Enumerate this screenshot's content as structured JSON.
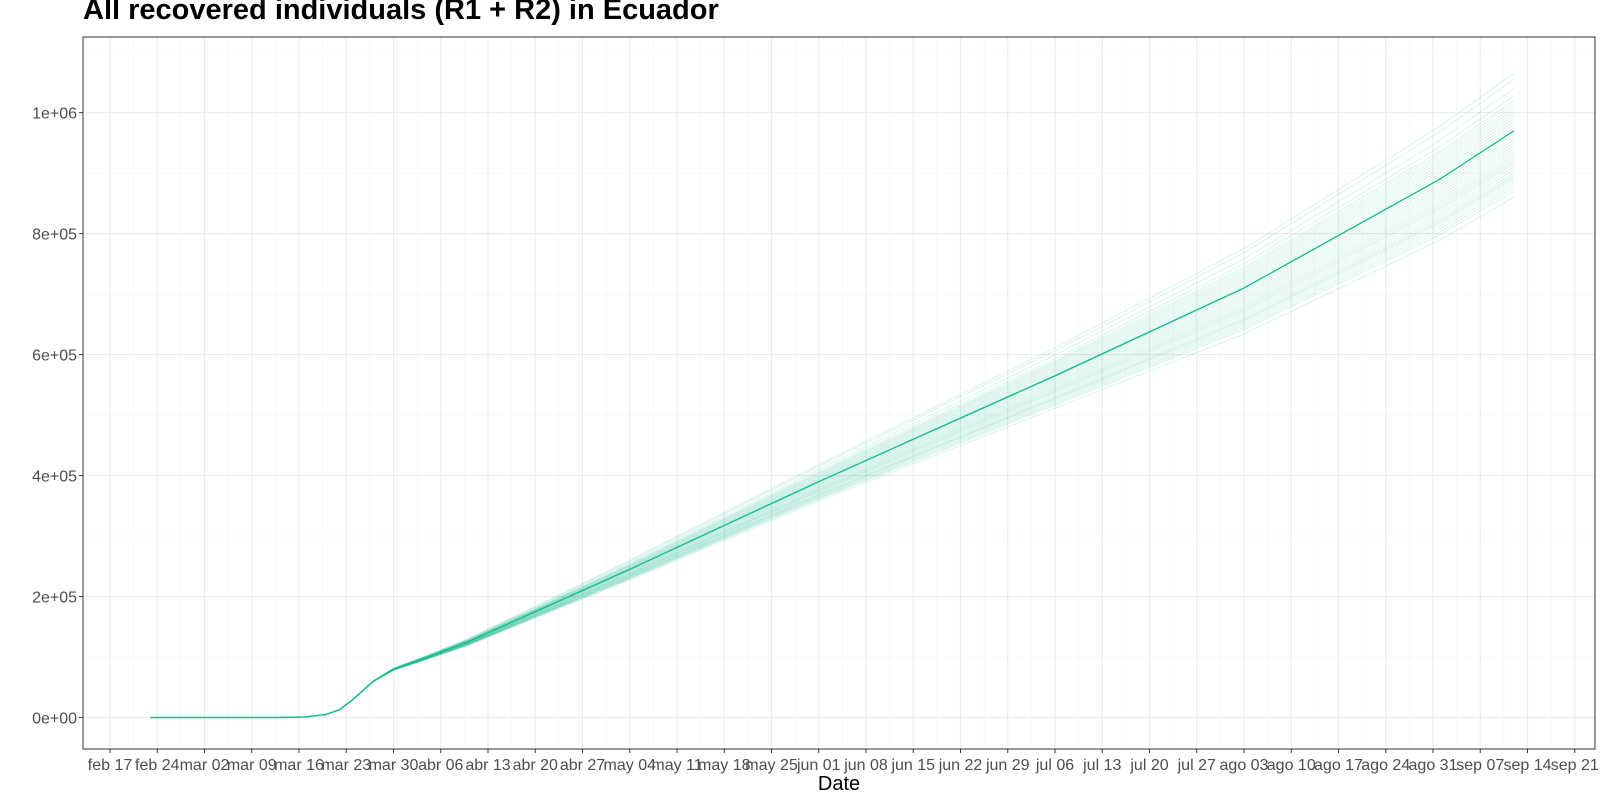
{
  "chart_data": {
    "type": "line",
    "title": "All recovered individuals (R1 + R2) in  Ecuador",
    "xlabel": "Date",
    "ylabel": "",
    "x_axis": {
      "type": "date",
      "range": [
        "2020-02-13",
        "2020-09-24"
      ],
      "tick_dates": [
        "2020-02-17",
        "2020-02-24",
        "2020-03-02",
        "2020-03-09",
        "2020-03-16",
        "2020-03-23",
        "2020-03-30",
        "2020-04-06",
        "2020-04-13",
        "2020-04-20",
        "2020-04-27",
        "2020-05-04",
        "2020-05-11",
        "2020-05-18",
        "2020-05-25",
        "2020-06-01",
        "2020-06-08",
        "2020-06-15",
        "2020-06-22",
        "2020-06-29",
        "2020-07-06",
        "2020-07-13",
        "2020-07-20",
        "2020-07-27",
        "2020-08-03",
        "2020-08-10",
        "2020-08-17",
        "2020-08-24",
        "2020-08-31",
        "2020-09-07",
        "2020-09-14",
        "2020-09-21"
      ],
      "tick_labels": [
        "feb 17",
        "feb 24",
        "mar 02",
        "mar 09",
        "mar 16",
        "mar 23",
        "mar 30",
        "abr 06",
        "abr 13",
        "abr 20",
        "abr 27",
        "may 04",
        "may 11",
        "may 18",
        "may 25",
        "jun 01",
        "jun 08",
        "jun 15",
        "jun 22",
        "jun 29",
        "jul 06",
        "jul 13",
        "jul 20",
        "jul 27",
        "ago 03",
        "ago 10",
        "ago 17",
        "ago 24",
        "ago 31",
        "sep 07",
        "sep 14",
        "sep 21"
      ]
    },
    "y_axis": {
      "range": [
        -52000,
        1125000
      ],
      "ticks": [
        0,
        200000,
        400000,
        600000,
        800000,
        1000000
      ],
      "tick_labels": [
        "0e+00",
        "2e+05",
        "4e+05",
        "6e+05",
        "8e+05",
        "1e+06"
      ]
    },
    "grid": true,
    "legend": "none",
    "line_color": "#1ABC8C",
    "main_series": {
      "x": [
        "2020-02-23",
        "2020-03-13",
        "2020-03-17",
        "2020-03-20",
        "2020-03-22",
        "2020-03-24",
        "2020-03-27",
        "2020-03-30",
        "2020-04-04",
        "2020-04-10",
        "2020-04-20",
        "2020-05-04",
        "2020-06-01",
        "2020-07-06",
        "2020-08-03",
        "2020-09-01",
        "2020-09-12"
      ],
      "y": [
        0,
        0,
        1000,
        5000,
        13000,
        30000,
        60000,
        80000,
        100000,
        125000,
        175000,
        245000,
        390000,
        565000,
        710000,
        890000,
        970000
      ]
    },
    "simulation_final_values": [
      860000,
      870000,
      875000,
      880000,
      885000,
      890000,
      893000,
      896000,
      900000,
      905000,
      910000,
      915000,
      918000,
      922000,
      926000,
      930000,
      935000,
      940000,
      945000,
      950000,
      955000,
      960000,
      965000,
      975000,
      980000,
      985000,
      990000,
      995000,
      1000000,
      1005000,
      1010000,
      1015000,
      1020000,
      1028000,
      1040000,
      1055000,
      1065000
    ]
  }
}
